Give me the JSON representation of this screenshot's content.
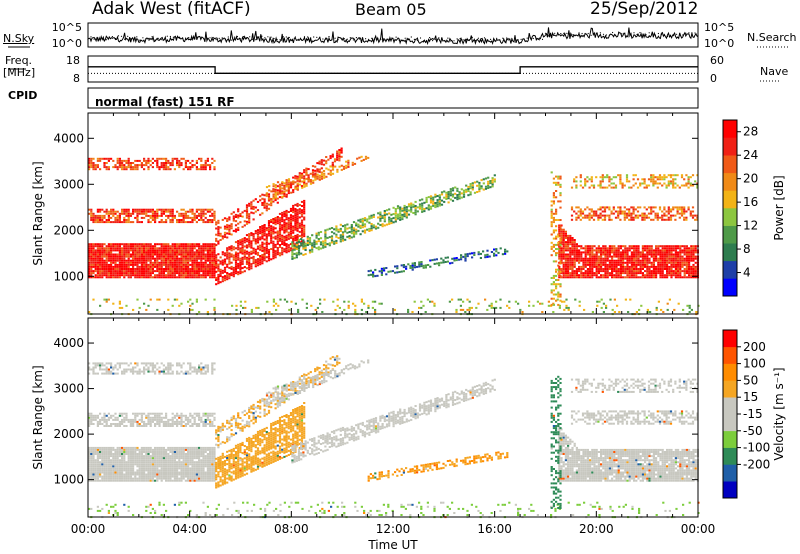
{
  "header": {
    "station": "Adak West (fitACF)",
    "beam": "Beam 05",
    "date": "25/Sep/2012"
  },
  "left_labels": {
    "nsky": "N.Sky",
    "freq": "Freq.",
    "freq_unit": "[MHz]",
    "cpid": "CPID"
  },
  "right_labels": {
    "nsearch": "N.Search",
    "nave": "Nave"
  },
  "cpid_text": "normal (fast) 151 RF",
  "colors": {
    "power_scale": [
      "#0000ff",
      "#1e3fa8",
      "#2e7d4f",
      "#4e9a48",
      "#8cc63f",
      "#f2b316",
      "#f08a17",
      "#f05a17",
      "#f02015",
      "#ff0000"
    ],
    "velocity_scale": [
      "#ff0000",
      "#ff5500",
      "#ff8c00",
      "#f5a623",
      "#c8c8c0",
      "#c8c8c0",
      "#7ccd3c",
      "#2e8b57",
      "#1f5fa8",
      "#0000c0"
    ]
  },
  "chart_data": [
    {
      "type": "line",
      "name": "noise",
      "series": [
        {
          "name": "N.Sky"
        },
        {
          "name": "N.Search"
        }
      ],
      "y_ticks": [
        "10^5",
        "10^0"
      ],
      "y_ticks_right": [
        "10^5",
        "10^0"
      ],
      "ylim": [
        0,
        5
      ],
      "y_scale": "log",
      "x": [
        0,
        1,
        2,
        3,
        4,
        5,
        6,
        7,
        8,
        9,
        10,
        11,
        12,
        13,
        14,
        15,
        16,
        17,
        18,
        19,
        20,
        21,
        22,
        23,
        24
      ],
      "values": [
        1.6,
        1.7,
        1.5,
        1.6,
        1.7,
        1.5,
        1.6,
        1.5,
        1.4,
        1.5,
        1.5,
        1.4,
        1.4,
        1.3,
        1.3,
        1.3,
        1.3,
        1.3,
        2.4,
        2.3,
        2.4,
        2.4,
        2.3,
        2.4,
        2.4
      ]
    },
    {
      "type": "line",
      "name": "frequency",
      "y_ticks": [
        "18",
        "8"
      ],
      "y_ticks_right": [
        "60",
        "0"
      ],
      "ylim": [
        6,
        18
      ],
      "series": [
        {
          "name": "Freq.",
          "x": [
            0,
            5,
            5,
            17,
            17,
            24
          ],
          "values": [
            13,
            13,
            10,
            10,
            13,
            13
          ]
        },
        {
          "name": "Nave",
          "x": [
            0,
            24
          ],
          "values": [
            10,
            10
          ]
        }
      ]
    },
    {
      "type": "heatmap",
      "name": "power",
      "ylabel": "Slant Range [km]",
      "y_ticks": [
        1000,
        2000,
        3000,
        4000
      ],
      "ylim": [
        180,
        4550
      ],
      "xlim": [
        0,
        24
      ],
      "colorbar_label": "Power [dB]",
      "colorbar_ticks": [
        4,
        8,
        12,
        16,
        20,
        24,
        28
      ],
      "colorbar_range": [
        0,
        30
      ]
    },
    {
      "type": "heatmap",
      "name": "velocity",
      "ylabel": "Slant Range [km]",
      "xlabel": "Time UT",
      "y_ticks": [
        1000,
        2000,
        3000,
        4000
      ],
      "ylim": [
        180,
        4550
      ],
      "xlim": [
        0,
        24
      ],
      "x_ticks": [
        "00:00",
        "04:00",
        "08:00",
        "12:00",
        "16:00",
        "20:00",
        "00:00"
      ],
      "colorbar_label": "Velocity [m s⁻¹]",
      "colorbar_ticks": [
        200,
        100,
        50,
        15,
        -15,
        -50,
        -100,
        -200
      ]
    }
  ]
}
